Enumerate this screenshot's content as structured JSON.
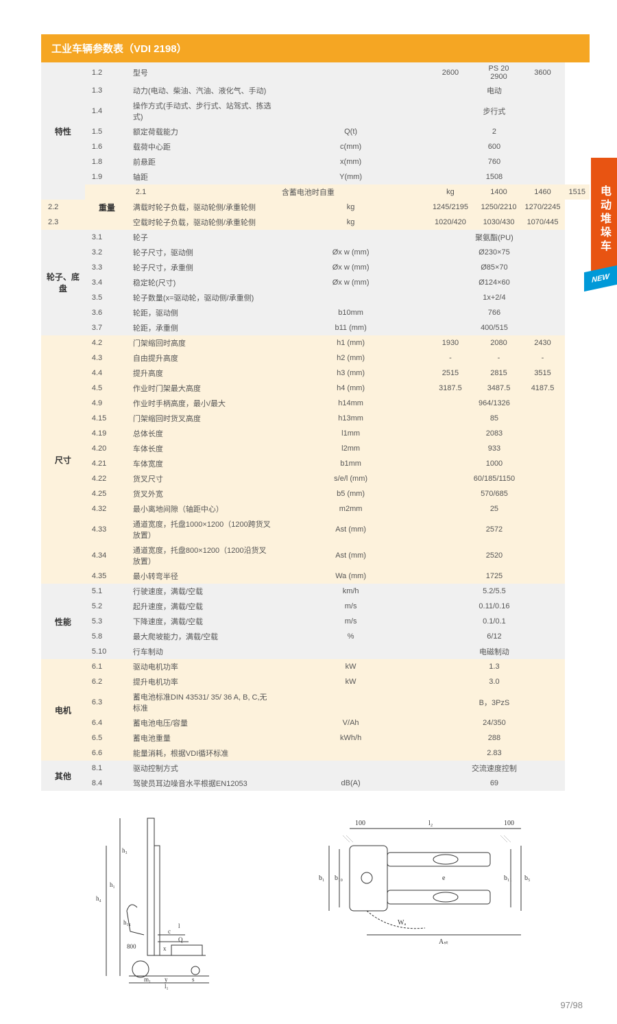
{
  "header": "工业车辆参数表（VDI 2198）",
  "side_tab": "电动堆垛车",
  "new_badge": "NEW",
  "page_num": "97/98",
  "colors": {
    "header_bg": "#f5a623",
    "header_fg": "#ffffff",
    "grey_bg": "#f0f0f0",
    "cream_bg": "#fdf2dc",
    "tab_bg": "#e85412",
    "badge_bg": "#0099d8",
    "text": "#555555"
  },
  "model_header": {
    "label": "PS 20",
    "cols": [
      "2600",
      "2900",
      "3600"
    ]
  },
  "sections": [
    {
      "name": "特性",
      "bg": "grey",
      "rows": [
        {
          "num": "1.2",
          "desc": "型号",
          "unit": "",
          "vals": [
            "2600",
            "2900",
            "3600"
          ],
          "skip_in_body": true
        },
        {
          "num": "1.3",
          "desc": "动力(电动、柴油、汽油、液化气、手动)",
          "unit": "",
          "span": "电动"
        },
        {
          "num": "1.4",
          "desc": "操作方式(手动式、步行式、站驾式、拣选式)",
          "unit": "",
          "span": "步行式"
        },
        {
          "num": "1.5",
          "desc": "额定荷载能力",
          "unit": "Q(t)",
          "span": "2"
        },
        {
          "num": "1.6",
          "desc": "载荷中心距",
          "unit": "c(mm)",
          "span": "600"
        },
        {
          "num": "1.8",
          "desc": "前悬距",
          "unit": "x(mm)",
          "span": "760"
        },
        {
          "num": "1.9",
          "desc": "轴距",
          "unit": "Y(mm)",
          "span": "1508"
        }
      ]
    },
    {
      "name": "重量",
      "bg": "cream",
      "rows": [
        {
          "num": "2.1",
          "desc": "含蓄电池时自重",
          "unit": "kg",
          "vals": [
            "1400",
            "1460",
            "1515"
          ]
        },
        {
          "num": "2.2",
          "desc": "满载时轮子负载，驱动轮侧/承重轮侧",
          "unit": "kg",
          "vals": [
            "1245/2195",
            "1250/2210",
            "1270/2245"
          ]
        },
        {
          "num": "2.3",
          "desc": "空载时轮子负载，驱动轮侧/承重轮侧",
          "unit": "kg",
          "vals": [
            "1020/420",
            "1030/430",
            "1070/445"
          ]
        }
      ]
    },
    {
      "name": "轮子、底盘",
      "bg": "grey",
      "rows": [
        {
          "num": "3.1",
          "desc": "轮子",
          "unit": "",
          "span": "聚氨酯(PU)"
        },
        {
          "num": "3.2",
          "desc": "轮子尺寸，驱动侧",
          "unit": "Øx w (mm)",
          "span": "Ø230×75"
        },
        {
          "num": "3.3",
          "desc": "轮子尺寸，承重侧",
          "unit": "Øx w (mm)",
          "span": "Ø85×70"
        },
        {
          "num": "3.4",
          "desc": "稳定轮(尺寸)",
          "unit": "Øx w (mm)",
          "span": "Ø124×60"
        },
        {
          "num": "3.5",
          "desc": "轮子数量(x=驱动轮，驱动侧/承重侧)",
          "unit": "",
          "span": "1x+2/4"
        },
        {
          "num": "3.6",
          "desc": "轮距，驱动侧",
          "unit": "b10mm",
          "span": "766"
        },
        {
          "num": "3.7",
          "desc": "轮距，承重侧",
          "unit": "b11 (mm)",
          "span": "400/515"
        }
      ]
    },
    {
      "name": "尺寸",
      "bg": "cream",
      "rows": [
        {
          "num": "4.2",
          "desc": "门架缩回时高度",
          "unit": "h1 (mm)",
          "vals": [
            "1930",
            "2080",
            "2430"
          ]
        },
        {
          "num": "4.3",
          "desc": "自由提升高度",
          "unit": "h2 (mm)",
          "vals": [
            "-",
            "-",
            "-"
          ]
        },
        {
          "num": "4.4",
          "desc": "提升高度",
          "unit": "h3 (mm)",
          "vals": [
            "2515",
            "2815",
            "3515"
          ]
        },
        {
          "num": "4.5",
          "desc": "作业时门架最大高度",
          "unit": "h4 (mm)",
          "vals": [
            "3187.5",
            "3487.5",
            "4187.5"
          ]
        },
        {
          "num": "4.9",
          "desc": "作业时手柄高度，最小/最大",
          "unit": "h14mm",
          "span": "964/1326"
        },
        {
          "num": "4.15",
          "desc": "门架缩回时货叉高度",
          "unit": "h13mm",
          "span": "85"
        },
        {
          "num": "4.19",
          "desc": "总体长度",
          "unit": "l1mm",
          "span": "2083"
        },
        {
          "num": "4.20",
          "desc": "车体长度",
          "unit": "l2mm",
          "span": "933"
        },
        {
          "num": "4.21",
          "desc": "车体宽度",
          "unit": "b1mm",
          "span": "1000"
        },
        {
          "num": "4.22",
          "desc": "货叉尺寸",
          "unit": "s/e/l (mm)",
          "span": "60/185/1150"
        },
        {
          "num": "4.25",
          "desc": "货叉外宽",
          "unit": "b5 (mm)",
          "span": "570/685"
        },
        {
          "num": "4.32",
          "desc": "最小离地间隙（轴距中心）",
          "unit": "m2mm",
          "span": "25"
        },
        {
          "num": "4.33",
          "desc": "通道宽度，托盘1000×1200（1200跨货叉放置）",
          "unit": "Ast (mm)",
          "span": "2572"
        },
        {
          "num": "4.34",
          "desc": "通道宽度，托盘800×1200（1200沿货叉放置）",
          "unit": "Ast (mm)",
          "span": "2520"
        },
        {
          "num": "4.35",
          "desc": "最小转弯半径",
          "unit": "Wa (mm)",
          "span": "1725"
        }
      ]
    },
    {
      "name": "性能",
      "bg": "grey",
      "rows": [
        {
          "num": "5.1",
          "desc": "行驶速度，满载/空载",
          "unit": "km/h",
          "span": "5.2/5.5"
        },
        {
          "num": "5.2",
          "desc": "起升速度，满载/空载",
          "unit": "m/s",
          "span": "0.11/0.16"
        },
        {
          "num": "5.3",
          "desc": "下降速度，满载/空载",
          "unit": "m/s",
          "span": "0.1/0.1"
        },
        {
          "num": "5.8",
          "desc": "最大爬坡能力，满载/空载",
          "unit": "%",
          "span": "6/12"
        },
        {
          "num": "5.10",
          "desc": "行车制动",
          "unit": "",
          "span": "电磁制动"
        }
      ]
    },
    {
      "name": "电机",
      "bg": "cream",
      "rows": [
        {
          "num": "6.1",
          "desc": "驱动电机功率",
          "unit": "kW",
          "span": "1.3"
        },
        {
          "num": "6.2",
          "desc": "提升电机功率",
          "unit": "kW",
          "span": "3.0"
        },
        {
          "num": "6.3",
          "desc": "蓄电池标准DIN 43531/ 35/ 36 A, B, C,无标准",
          "unit": "",
          "span": "B，3PzS"
        },
        {
          "num": "6.4",
          "desc": "蓄电池电压/容量",
          "unit": "V/Ah",
          "span": "24/350"
        },
        {
          "num": "6.5",
          "desc": "蓄电池重量",
          "unit": "kWh/h",
          "span": "288"
        },
        {
          "num": "6.6",
          "desc": "能量消耗，根据VDI循环标准",
          "unit": "",
          "span": "2.83"
        }
      ]
    },
    {
      "name": "其他",
      "bg": "grey",
      "rows": [
        {
          "num": "8.1",
          "desc": "驱动控制方式",
          "unit": "",
          "span": "交流速度控制"
        },
        {
          "num": "8.4",
          "desc": "驾驶员耳边噪音水平根据EN12053",
          "unit": "dB(A)",
          "span": "69"
        }
      ]
    }
  ],
  "diagrams": {
    "left": {
      "labels": [
        "h₁",
        "h₃",
        "h₄",
        "h₁₄",
        "800",
        "c",
        "Q",
        "x",
        "m₁",
        "y",
        "l₁",
        "l",
        "s"
      ]
    },
    "right": {
      "labels": [
        "100",
        "l₂",
        "100",
        "b₁",
        "b₁₀",
        "e",
        "b₁₁",
        "b₅",
        "Wₐ",
        "Aₛₜ"
      ]
    }
  }
}
